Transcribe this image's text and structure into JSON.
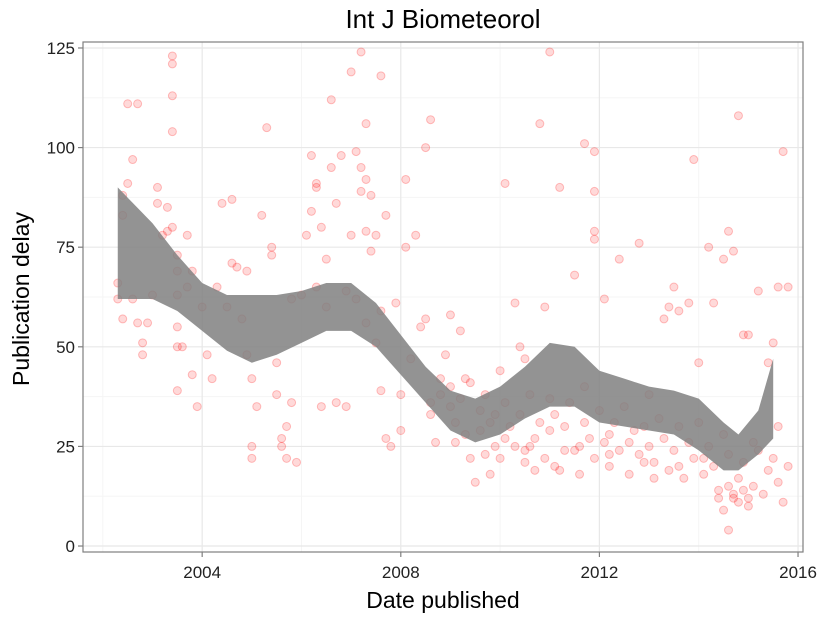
{
  "chart_data": {
    "type": "scatter",
    "title": "Int J Biometeorol",
    "xlabel": "Date published",
    "ylabel": "Publication delay",
    "xlim": [
      2001.6,
      2016.1
    ],
    "ylim": [
      -1.5,
      126.5
    ],
    "x_ticks": [
      2004,
      2008,
      2012,
      2016
    ],
    "x_tick_labels": [
      "2004",
      "2008",
      "2012",
      "2016"
    ],
    "y_ticks": [
      0,
      25,
      50,
      75,
      100,
      125
    ],
    "y_tick_labels": [
      "0",
      "25",
      "50",
      "75",
      "100",
      "125"
    ],
    "grid": true,
    "point_color": "#ff0000",
    "point_opacity": 0.15,
    "band_color": "#808080",
    "smooth_band": [
      [
        2002.3,
        62,
        90
      ],
      [
        2003.0,
        62,
        81
      ],
      [
        2003.5,
        59,
        73
      ],
      [
        2004.0,
        54,
        66
      ],
      [
        2004.5,
        49,
        63
      ],
      [
        2005.0,
        46,
        63
      ],
      [
        2005.5,
        48,
        63
      ],
      [
        2006.0,
        51,
        64
      ],
      [
        2006.5,
        54,
        66
      ],
      [
        2007.0,
        54,
        66
      ],
      [
        2007.5,
        50,
        61
      ],
      [
        2008.0,
        43,
        53
      ],
      [
        2008.5,
        36,
        45
      ],
      [
        2009.0,
        29,
        39
      ],
      [
        2009.5,
        26,
        37
      ],
      [
        2010.0,
        28,
        40
      ],
      [
        2010.5,
        32,
        45
      ],
      [
        2011.0,
        35,
        51
      ],
      [
        2011.5,
        35,
        50
      ],
      [
        2012.0,
        31,
        44
      ],
      [
        2012.5,
        30,
        42
      ],
      [
        2013.0,
        29,
        40
      ],
      [
        2013.5,
        28,
        39
      ],
      [
        2014.0,
        24,
        37
      ],
      [
        2014.5,
        19,
        31
      ],
      [
        2014.8,
        19,
        28
      ],
      [
        2015.2,
        23,
        34
      ],
      [
        2015.5,
        27,
        47
      ]
    ],
    "series": [
      {
        "points": [
          [
            2002.3,
            62
          ],
          [
            2002.3,
            66
          ],
          [
            2002.4,
            57
          ],
          [
            2002.4,
            83
          ],
          [
            2002.4,
            88
          ],
          [
            2002.5,
            111
          ],
          [
            2002.5,
            91
          ],
          [
            2002.6,
            97
          ],
          [
            2002.6,
            62
          ],
          [
            2002.7,
            111
          ],
          [
            2002.7,
            56
          ],
          [
            2002.8,
            51
          ],
          [
            2002.8,
            48
          ],
          [
            2002.9,
            56
          ],
          [
            2003.0,
            63
          ],
          [
            2003.1,
            90
          ],
          [
            2003.1,
            86
          ],
          [
            2003.2,
            78
          ],
          [
            2003.3,
            79
          ],
          [
            2003.3,
            85
          ],
          [
            2003.4,
            123
          ],
          [
            2003.4,
            121
          ],
          [
            2003.4,
            113
          ],
          [
            2003.4,
            104
          ],
          [
            2003.4,
            80
          ],
          [
            2003.5,
            73
          ],
          [
            2003.5,
            69
          ],
          [
            2003.5,
            63
          ],
          [
            2003.5,
            55
          ],
          [
            2003.5,
            50
          ],
          [
            2003.5,
            39
          ],
          [
            2003.6,
            50
          ],
          [
            2003.7,
            78
          ],
          [
            2003.7,
            65
          ],
          [
            2003.8,
            69
          ],
          [
            2003.8,
            43
          ],
          [
            2003.9,
            35
          ],
          [
            2004.0,
            60
          ],
          [
            2004.1,
            48
          ],
          [
            2004.2,
            42
          ],
          [
            2004.3,
            65
          ],
          [
            2004.4,
            86
          ],
          [
            2004.5,
            60
          ],
          [
            2004.6,
            71
          ],
          [
            2004.6,
            87
          ],
          [
            2004.7,
            70
          ],
          [
            2004.8,
            57
          ],
          [
            2004.9,
            69
          ],
          [
            2004.9,
            48
          ],
          [
            2005.0,
            42
          ],
          [
            2005.0,
            25
          ],
          [
            2005.0,
            22
          ],
          [
            2005.1,
            35
          ],
          [
            2005.2,
            83
          ],
          [
            2005.3,
            105
          ],
          [
            2005.4,
            75
          ],
          [
            2005.4,
            73
          ],
          [
            2005.5,
            46
          ],
          [
            2005.5,
            38
          ],
          [
            2005.6,
            27
          ],
          [
            2005.6,
            25
          ],
          [
            2005.7,
            30
          ],
          [
            2005.7,
            22
          ],
          [
            2005.8,
            62
          ],
          [
            2005.8,
            36
          ],
          [
            2005.9,
            21
          ],
          [
            2006.0,
            63
          ],
          [
            2006.1,
            78
          ],
          [
            2006.2,
            84
          ],
          [
            2006.2,
            98
          ],
          [
            2006.3,
            65
          ],
          [
            2006.3,
            90
          ],
          [
            2006.3,
            91
          ],
          [
            2006.4,
            80
          ],
          [
            2006.4,
            35
          ],
          [
            2006.5,
            72
          ],
          [
            2006.5,
            60
          ],
          [
            2006.6,
            112
          ],
          [
            2006.6,
            95
          ],
          [
            2006.7,
            86
          ],
          [
            2006.7,
            36
          ],
          [
            2006.8,
            98
          ],
          [
            2006.9,
            64
          ],
          [
            2006.9,
            35
          ],
          [
            2007.0,
            78
          ],
          [
            2007.0,
            119
          ],
          [
            2007.1,
            99
          ],
          [
            2007.1,
            62
          ],
          [
            2007.2,
            124
          ],
          [
            2007.2,
            95
          ],
          [
            2007.2,
            89
          ],
          [
            2007.3,
            106
          ],
          [
            2007.3,
            92
          ],
          [
            2007.3,
            79
          ],
          [
            2007.3,
            56
          ],
          [
            2007.4,
            88
          ],
          [
            2007.4,
            74
          ],
          [
            2007.5,
            78
          ],
          [
            2007.5,
            51
          ],
          [
            2007.6,
            118
          ],
          [
            2007.6,
            59
          ],
          [
            2007.6,
            39
          ],
          [
            2007.7,
            83
          ],
          [
            2007.7,
            27
          ],
          [
            2007.8,
            25
          ],
          [
            2007.9,
            61
          ],
          [
            2008.0,
            38
          ],
          [
            2008.0,
            29
          ],
          [
            2008.1,
            75
          ],
          [
            2008.1,
            92
          ],
          [
            2008.2,
            47
          ],
          [
            2008.3,
            78
          ],
          [
            2008.4,
            55
          ],
          [
            2008.5,
            100
          ],
          [
            2008.5,
            57
          ],
          [
            2008.6,
            107
          ],
          [
            2008.6,
            36
          ],
          [
            2008.7,
            26
          ],
          [
            2008.8,
            42
          ],
          [
            2008.9,
            48
          ],
          [
            2009.0,
            58
          ],
          [
            2009.0,
            35
          ],
          [
            2009.1,
            31
          ],
          [
            2009.2,
            54
          ],
          [
            2009.3,
            42
          ],
          [
            2009.4,
            22
          ],
          [
            2009.5,
            16
          ],
          [
            2009.6,
            34
          ],
          [
            2009.7,
            23
          ],
          [
            2009.8,
            18
          ],
          [
            2009.9,
            33
          ],
          [
            2010.0,
            44
          ],
          [
            2010.1,
            91
          ],
          [
            2010.1,
            27
          ],
          [
            2010.3,
            61
          ],
          [
            2010.4,
            50
          ],
          [
            2010.5,
            47
          ],
          [
            2010.6,
            25
          ],
          [
            2010.7,
            19
          ],
          [
            2010.8,
            106
          ],
          [
            2010.9,
            60
          ],
          [
            2011.0,
            124
          ],
          [
            2011.0,
            37
          ],
          [
            2011.2,
            90
          ],
          [
            2011.3,
            24
          ],
          [
            2011.5,
            68
          ],
          [
            2011.7,
            101
          ],
          [
            2011.7,
            40
          ],
          [
            2011.9,
            79
          ],
          [
            2011.9,
            99
          ],
          [
            2011.9,
            89
          ],
          [
            2011.9,
            77
          ],
          [
            2012.1,
            62
          ],
          [
            2012.2,
            28
          ],
          [
            2012.4,
            72
          ],
          [
            2012.6,
            26
          ],
          [
            2012.8,
            76
          ],
          [
            2013.0,
            38
          ],
          [
            2013.1,
            17
          ],
          [
            2013.3,
            57
          ],
          [
            2013.4,
            60
          ],
          [
            2013.5,
            65
          ],
          [
            2013.6,
            59
          ],
          [
            2013.8,
            61
          ],
          [
            2013.9,
            97
          ],
          [
            2014.0,
            46
          ],
          [
            2014.2,
            75
          ],
          [
            2014.3,
            61
          ],
          [
            2014.5,
            72
          ],
          [
            2014.6,
            79
          ],
          [
            2014.7,
            74
          ],
          [
            2014.8,
            108
          ],
          [
            2014.9,
            53
          ],
          [
            2015.0,
            53
          ],
          [
            2015.1,
            26
          ],
          [
            2015.2,
            64
          ],
          [
            2015.4,
            46
          ],
          [
            2015.5,
            51
          ],
          [
            2015.6,
            65
          ],
          [
            2015.6,
            30
          ],
          [
            2015.7,
            99
          ],
          [
            2015.8,
            65
          ],
          [
            2015.8,
            20
          ],
          [
            2008.6,
            33
          ],
          [
            2008.8,
            38
          ],
          [
            2009.0,
            40
          ],
          [
            2009.1,
            26
          ],
          [
            2009.2,
            37
          ],
          [
            2009.3,
            28
          ],
          [
            2009.4,
            41
          ],
          [
            2009.6,
            29
          ],
          [
            2009.7,
            38
          ],
          [
            2009.8,
            31
          ],
          [
            2009.9,
            25
          ],
          [
            2010.0,
            22
          ],
          [
            2010.1,
            36
          ],
          [
            2010.2,
            30
          ],
          [
            2010.3,
            25
          ],
          [
            2010.4,
            33
          ],
          [
            2010.5,
            21
          ],
          [
            2010.6,
            38
          ],
          [
            2010.7,
            27
          ],
          [
            2010.8,
            31
          ],
          [
            2010.9,
            22
          ],
          [
            2011.0,
            29
          ],
          [
            2011.1,
            33
          ],
          [
            2011.2,
            19
          ],
          [
            2011.3,
            30
          ],
          [
            2011.4,
            36
          ],
          [
            2011.5,
            24
          ],
          [
            2011.6,
            18
          ],
          [
            2011.7,
            31
          ],
          [
            2011.8,
            27
          ],
          [
            2011.9,
            22
          ],
          [
            2012.0,
            34
          ],
          [
            2012.1,
            26
          ],
          [
            2012.2,
            20
          ],
          [
            2012.3,
            31
          ],
          [
            2012.4,
            24
          ],
          [
            2012.5,
            35
          ],
          [
            2012.6,
            18
          ],
          [
            2012.7,
            29
          ],
          [
            2012.8,
            23
          ],
          [
            2012.9,
            30
          ],
          [
            2013.0,
            25
          ],
          [
            2013.1,
            21
          ],
          [
            2013.2,
            32
          ],
          [
            2013.3,
            27
          ],
          [
            2013.4,
            19
          ],
          [
            2013.5,
            24
          ],
          [
            2013.6,
            30
          ],
          [
            2013.7,
            17
          ],
          [
            2013.8,
            26
          ],
          [
            2013.9,
            22
          ],
          [
            2014.0,
            31
          ],
          [
            2014.1,
            18
          ],
          [
            2014.2,
            25
          ],
          [
            2014.3,
            20
          ],
          [
            2014.4,
            14
          ],
          [
            2014.5,
            28
          ],
          [
            2014.6,
            23
          ],
          [
            2014.7,
            12
          ],
          [
            2014.8,
            17
          ],
          [
            2014.9,
            21
          ],
          [
            2015.0,
            10
          ],
          [
            2015.1,
            15
          ],
          [
            2015.2,
            24
          ],
          [
            2015.3,
            13
          ],
          [
            2015.4,
            19
          ],
          [
            2015.5,
            22
          ],
          [
            2015.6,
            16
          ],
          [
            2015.7,
            11
          ],
          [
            2014.4,
            12
          ],
          [
            2014.5,
            9
          ],
          [
            2014.6,
            15
          ],
          [
            2014.7,
            13
          ],
          [
            2014.8,
            11
          ],
          [
            2014.9,
            14
          ],
          [
            2015.0,
            12
          ],
          [
            2014.6,
            4
          ],
          [
            2010.5,
            24
          ],
          [
            2011.1,
            20
          ],
          [
            2011.6,
            25
          ],
          [
            2012.2,
            23
          ],
          [
            2012.9,
            21
          ],
          [
            2013.6,
            20
          ],
          [
            2014.1,
            22
          ]
        ]
      }
    ]
  }
}
